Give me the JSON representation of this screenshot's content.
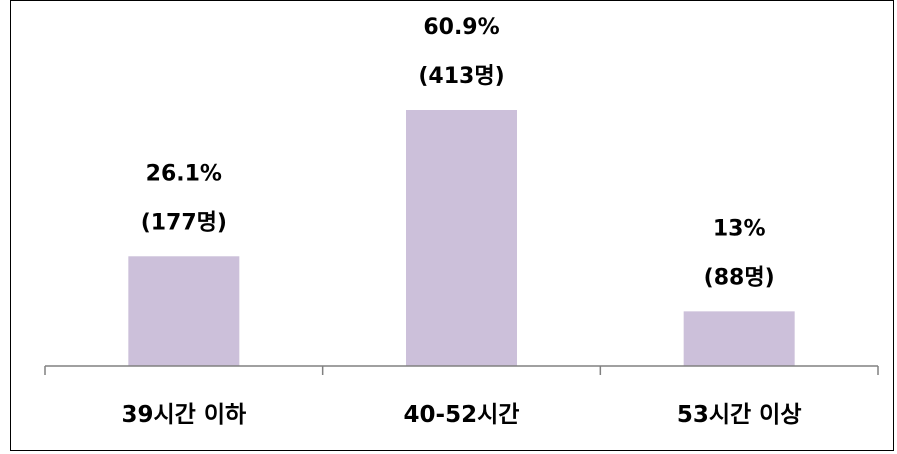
{
  "chart_data": {
    "type": "bar",
    "categories": [
      "39시간 이하",
      "40-52시간",
      "53시간 이상"
    ],
    "values": [
      26.1,
      60.9,
      13
    ],
    "data_labels": [
      {
        "percent": "26.1%",
        "count": "(177명)"
      },
      {
        "percent": "60.9%",
        "count": "(413명)"
      },
      {
        "percent": "13%",
        "count": "(88명)"
      }
    ],
    "bar_color": "#ccc0da",
    "axis_color": "#808080",
    "grid": false,
    "legend": "none",
    "ylim": [
      0,
      70
    ]
  }
}
